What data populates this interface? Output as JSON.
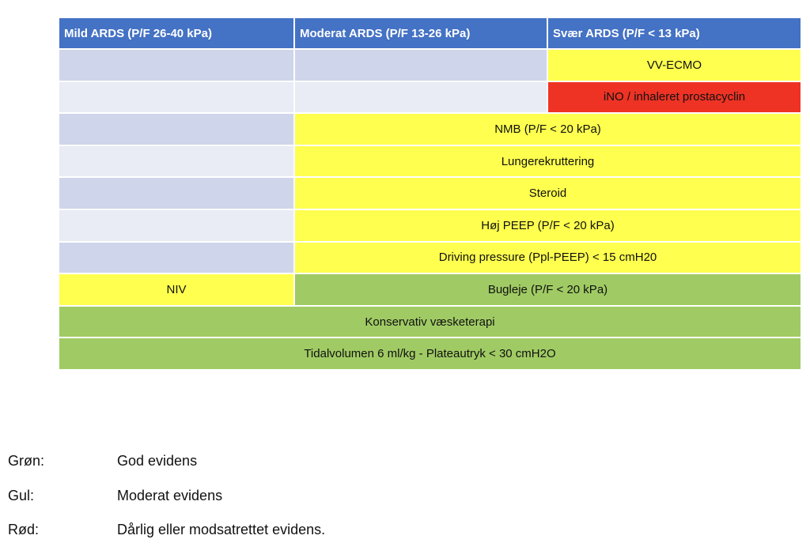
{
  "headers": [
    "Mild ARDS (P/F 26-40 kPa)",
    "Moderat ARDS (P/F 13-26 kPa)",
    "Svær ARDS (P/F < 13 kPa)"
  ],
  "rows": {
    "vv_ecmo": "VV-ECMO",
    "ino": "iNO / inhaleret prostacyclin",
    "nmb": "NMB (P/F < 20 kPa)",
    "recruitment": "Lungerekruttering",
    "steroid": "Steroid",
    "high_peep": "Høj PEEP (P/F < 20 kPa)",
    "driving_pressure": "Driving pressure (Ppl-PEEP)  < 15 cmH20",
    "niv": "NIV",
    "prone": "Bugleje (P/F < 20 kPa)",
    "fluid": "Konservativ væsketerapi",
    "tidal": "Tidalvolumen 6 ml/kg - Plateautryk < 30 cmH2O"
  },
  "legend": [
    {
      "label": "Grøn:",
      "text": "God evidens",
      "color": "#A0CB64"
    },
    {
      "label": "Gul:",
      "text": "Moderat evidens",
      "color": "#FFFF4F"
    },
    {
      "label": "Rød:",
      "text": "Dårlig eller modsatrettet evidens.",
      "color": "#EE3324"
    }
  ],
  "colors": {
    "header": "#4472C4",
    "row_dark": "#CFD5EA",
    "row_light": "#E9EBF5"
  }
}
